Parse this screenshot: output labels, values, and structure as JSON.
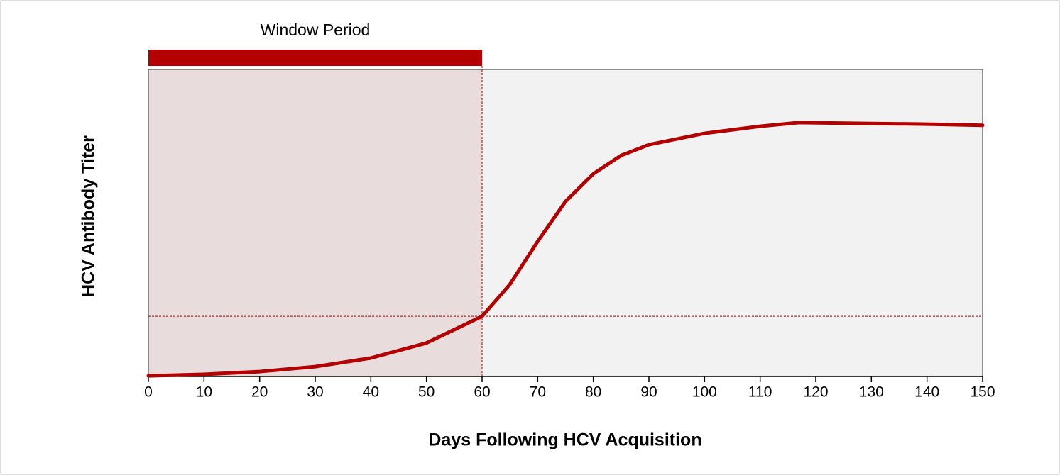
{
  "chart_data": {
    "type": "line",
    "xlabel": "Days Following HCV Acquisition",
    "ylabel": "HCV Antibody Titer",
    "x": [
      0,
      10,
      20,
      30,
      40,
      50,
      60,
      65,
      70,
      75,
      80,
      85,
      90,
      100,
      110,
      117,
      130,
      140,
      150
    ],
    "series": [
      {
        "color": "#b30000",
        "values": [
          0.2,
          0.7,
          1.6,
          3.2,
          6,
          10.9,
          19.6,
          30,
          44,
          57,
          66,
          72,
          75.5,
          79.2,
          81.5,
          82.7,
          82.4,
          82.2,
          81.8
        ]
      }
    ],
    "xlim": [
      0,
      150
    ],
    "xticks": [
      0,
      10,
      20,
      30,
      40,
      50,
      60,
      70,
      80,
      90,
      100,
      110,
      120,
      130,
      140,
      150
    ],
    "ylim": [
      0,
      100
    ],
    "threshold": 19.6,
    "window": {
      "label": "Window Period",
      "start": 0,
      "end": 60,
      "color": "#b30000"
    }
  }
}
